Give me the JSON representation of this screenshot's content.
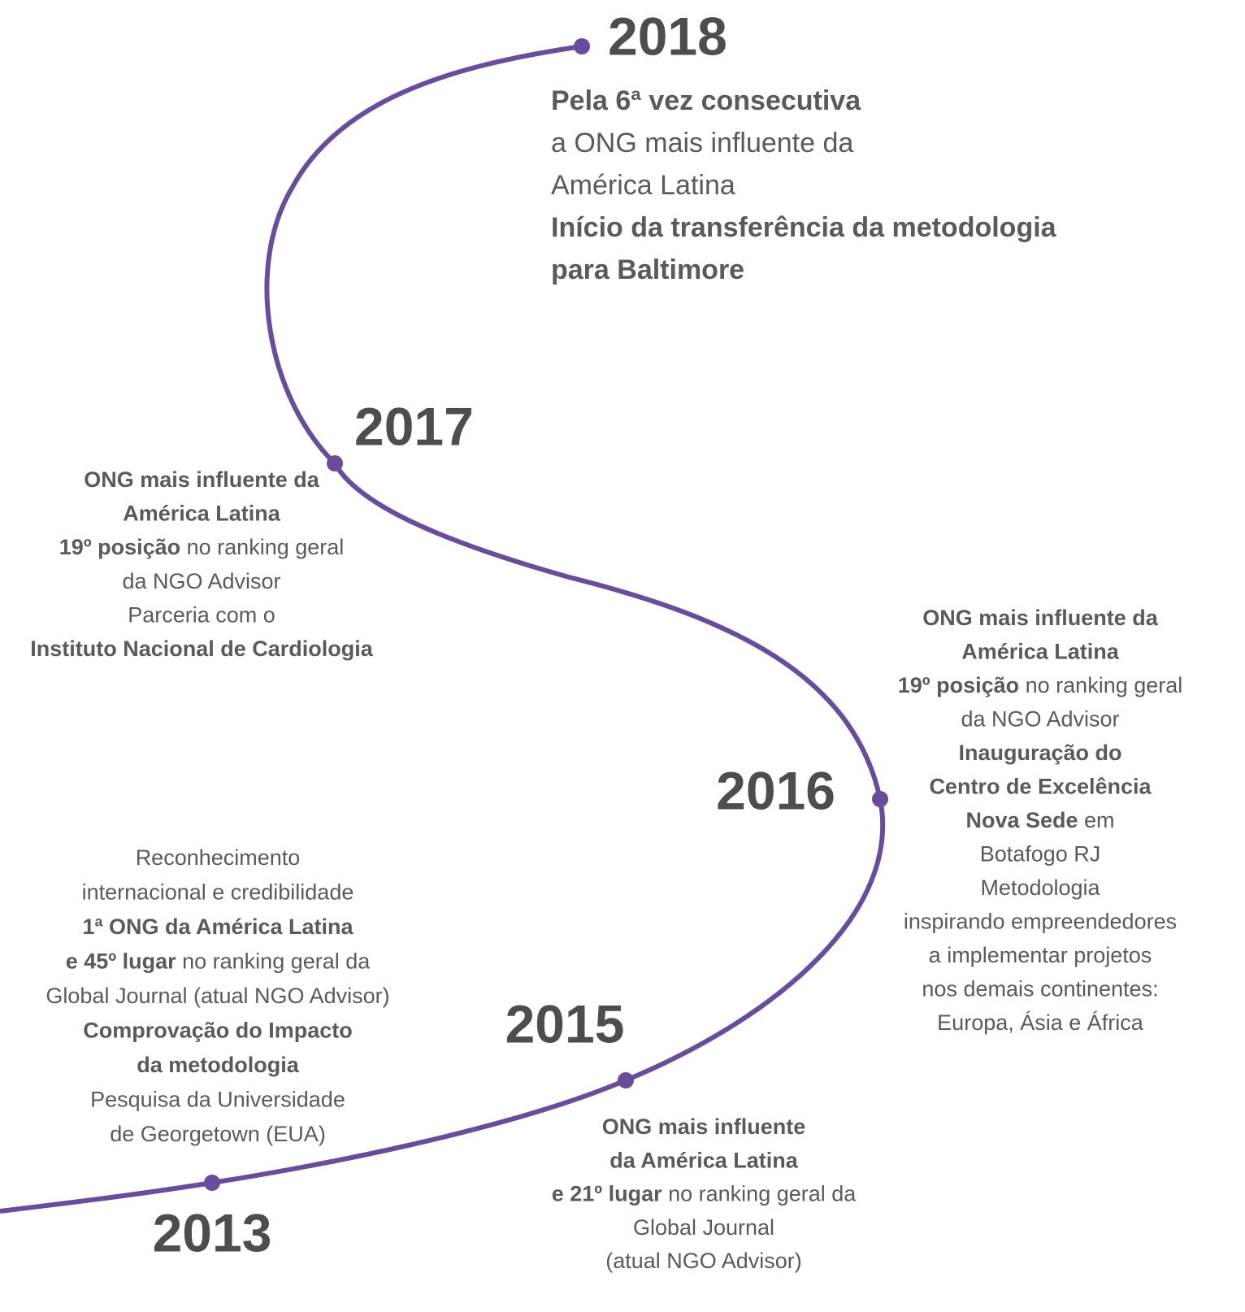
{
  "milestones": [
    {
      "year": "2018",
      "lines": [
        [
          {
            "text": "Pela 6ª vez consecutiva",
            "bold": true
          }
        ],
        [
          {
            "text": "a ONG mais influente da",
            "bold": false
          }
        ],
        [
          {
            "text": "América Latina",
            "bold": false
          }
        ],
        [
          {
            "text": "Início da transferência da metodologia",
            "bold": true
          }
        ],
        [
          {
            "text": "para Baltimore",
            "bold": true
          }
        ]
      ]
    },
    {
      "year": "2017",
      "lines": [
        [
          {
            "text": "ONG mais influente da",
            "bold": true
          }
        ],
        [
          {
            "text": "América Latina",
            "bold": true
          }
        ],
        [
          {
            "text": "19º posição",
            "bold": true
          },
          {
            "text": " no ranking geral",
            "bold": false
          }
        ],
        [
          {
            "text": "da NGO Advisor",
            "bold": false
          }
        ],
        [
          {
            "text": "Parceria com o",
            "bold": false
          }
        ],
        [
          {
            "text": "Instituto Nacional de Cardiologia",
            "bold": true
          }
        ]
      ]
    },
    {
      "year": "2016",
      "lines": [
        [
          {
            "text": "ONG mais influente da",
            "bold": true
          }
        ],
        [
          {
            "text": "América Latina",
            "bold": true
          }
        ],
        [
          {
            "text": "19º posição",
            "bold": true
          },
          {
            "text": " no ranking geral",
            "bold": false
          }
        ],
        [
          {
            "text": "da NGO Advisor",
            "bold": false
          }
        ],
        [
          {
            "text": "Inauguração do",
            "bold": true
          }
        ],
        [
          {
            "text": "Centro de Excelência",
            "bold": true
          }
        ],
        [
          {
            "text": "Nova Sede",
            "bold": true
          },
          {
            "text": " em",
            "bold": false
          }
        ],
        [
          {
            "text": "Botafogo RJ",
            "bold": false
          }
        ],
        [
          {
            "text": "Metodologia",
            "bold": false
          }
        ],
        [
          {
            "text": "inspirando empreendedores",
            "bold": false
          }
        ],
        [
          {
            "text": "a implementar projetos",
            "bold": false
          }
        ],
        [
          {
            "text": "nos demais continentes:",
            "bold": false
          }
        ],
        [
          {
            "text": "Europa, Ásia e África",
            "bold": false
          }
        ]
      ]
    },
    {
      "year": "2015",
      "lines": [
        [
          {
            "text": "ONG mais influente",
            "bold": true
          }
        ],
        [
          {
            "text": "da América Latina",
            "bold": true
          }
        ],
        [
          {
            "text": "e 21º lugar",
            "bold": true
          },
          {
            "text": " no ranking geral da",
            "bold": false
          }
        ],
        [
          {
            "text": "Global Journal",
            "bold": false
          }
        ],
        [
          {
            "text": "(atual NGO Advisor)",
            "bold": false
          }
        ]
      ]
    },
    {
      "year": "2013",
      "lines": [
        [
          {
            "text": "Reconhecimento",
            "bold": false
          }
        ],
        [
          {
            "text": "internacional e credibilidade",
            "bold": false
          }
        ],
        [
          {
            "text": "1ª ONG da América Latina",
            "bold": true
          }
        ],
        [
          {
            "text": "e 45º lugar",
            "bold": true
          },
          {
            "text": " no ranking geral da",
            "bold": false
          }
        ],
        [
          {
            "text": "Global Journal (atual NGO Advisor)",
            "bold": false
          }
        ],
        [
          {
            "text": "Comprovação do Impacto",
            "bold": true
          }
        ],
        [
          {
            "text": "da metodologia",
            "bold": true
          }
        ],
        [
          {
            "text": "Pesquisa da Universidade",
            "bold": false
          }
        ],
        [
          {
            "text": "de Georgetown (EUA)",
            "bold": false
          }
        ]
      ]
    }
  ]
}
